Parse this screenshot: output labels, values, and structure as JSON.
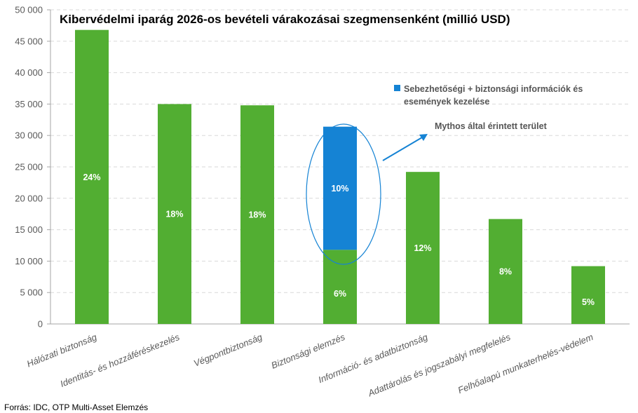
{
  "title": "Kibervédelmi iparág 2026-os bevételi várakozásai szegmensenként (millió USD)",
  "source": "Forrás: IDC, OTP Multi-Asset Elemzés",
  "annotation": "Mythos által érintett terület",
  "chart_data": {
    "type": "bar",
    "stacked": true,
    "ylim": [
      0,
      50000
    ],
    "yticks": [
      0,
      5000,
      10000,
      15000,
      20000,
      25000,
      30000,
      35000,
      40000,
      45000,
      50000
    ],
    "ytick_labels": [
      "0",
      "5 000",
      "10 000",
      "15 000",
      "20 000",
      "25 000",
      "30 000",
      "35 000",
      "40 000",
      "45 000",
      "50 000"
    ],
    "grid": true,
    "legend_position": "right",
    "categories": [
      "Hálózati biztonság",
      "Identitás- és hozzáféréskezelés",
      "Végpontbiztonság",
      "Biztonsági elemzés",
      "Információ- és adatbiztonság",
      "Adattárolás és jogszabályi megfelelés",
      "Felhőalapú munkaterhelés-védelem"
    ],
    "series": [
      {
        "name": "",
        "color": "#52AE32",
        "values": [
          46800,
          35000,
          34800,
          11800,
          24200,
          16700,
          9200
        ],
        "labels": [
          "24%",
          "18%",
          "18%",
          "6%",
          "12%",
          "8%",
          "5%"
        ]
      },
      {
        "name": "Sebezhetőségi + biztonsági információk és események kezelése",
        "color": "#1583D4",
        "values": [
          0,
          0,
          0,
          19600,
          0,
          0,
          0
        ],
        "labels": [
          "",
          "",
          "",
          "10%",
          "",
          "",
          ""
        ]
      }
    ]
  }
}
